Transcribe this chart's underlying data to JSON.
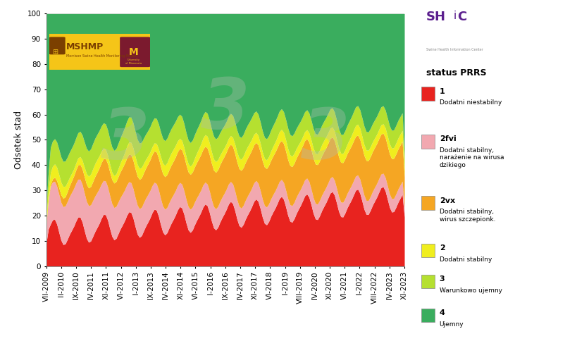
{
  "xlabel_ticks": [
    "VII-2009",
    "II-2010",
    "IX-2010",
    "IV-2011",
    "XI-2011",
    "VI-2012",
    "I-2013",
    "IX-2013",
    "IV-2014",
    "XI-2014",
    "VI-2015",
    "I-2016",
    "IX-2016",
    "IV-2017",
    "XI-2017",
    "VI-2018",
    "I-2019",
    "VIII-2019",
    "IV-2020",
    "XI-2020",
    "VI-2021",
    "I-2022",
    "VIII-2022",
    "IV-2023",
    "XI-2023"
  ],
  "status1_color": "#e8231f",
  "status2fvi_color": "#f2a8b0",
  "status2vx_color": "#f5a623",
  "status2_color": "#f0ee1e",
  "status3_color": "#b5e030",
  "status4_color": "#3aad5e",
  "background_color": "#ffffff",
  "ylabel": "Odsetek stad",
  "legend_title": "status PRRS",
  "watermark_color": "#b0c0b0",
  "watermark_alpha": 0.35,
  "n_months": 170
}
